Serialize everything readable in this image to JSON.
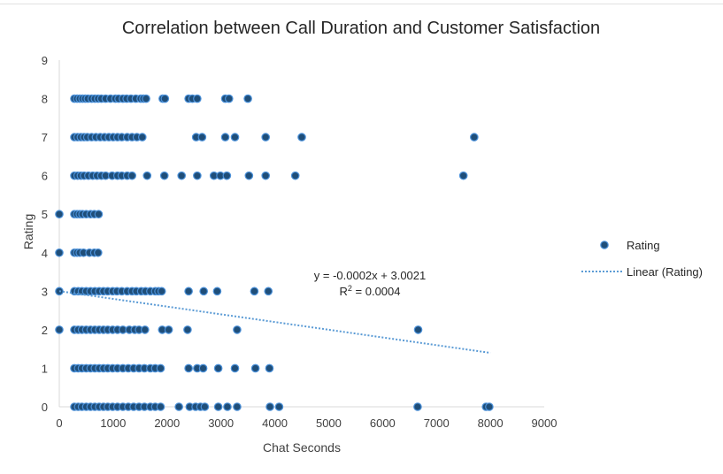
{
  "chart_data": {
    "type": "scatter",
    "title": "Correlation between Call Duration and Customer Satisfaction",
    "xlabel": "Chat Seconds",
    "ylabel": "Rating",
    "xlim": [
      0,
      9000
    ],
    "ylim": [
      0,
      9
    ],
    "x_ticks": [
      "0",
      "1000",
      "2000",
      "3000",
      "4000",
      "5000",
      "6000",
      "7000",
      "8000",
      "9000"
    ],
    "y_ticks": [
      "0",
      "1",
      "2",
      "3",
      "4",
      "5",
      "6",
      "7",
      "8",
      "9"
    ],
    "grid": false,
    "legend_position": "right",
    "colors": {
      "points": "#1f4e79",
      "point_edge": "#4a90d9",
      "trendline": "#5b9bd5"
    },
    "series": [
      {
        "name": "Rating",
        "marker": "circle",
        "points": [
          [
            0,
            3
          ],
          [
            0,
            4
          ],
          [
            0,
            5
          ],
          [
            0,
            2
          ],
          [
            280,
            8
          ],
          [
            330,
            8
          ],
          [
            380,
            8
          ],
          [
            430,
            8
          ],
          [
            480,
            8
          ],
          [
            530,
            8
          ],
          [
            600,
            8
          ],
          [
            660,
            8
          ],
          [
            720,
            8
          ],
          [
            780,
            8
          ],
          [
            860,
            8
          ],
          [
            950,
            8
          ],
          [
            1040,
            8
          ],
          [
            1100,
            8
          ],
          [
            1180,
            8
          ],
          [
            1250,
            8
          ],
          [
            1330,
            8
          ],
          [
            1420,
            8
          ],
          [
            1510,
            8
          ],
          [
            1560,
            8
          ],
          [
            1610,
            8
          ],
          [
            1920,
            8
          ],
          [
            1960,
            8
          ],
          [
            2400,
            8
          ],
          [
            2470,
            8
          ],
          [
            2560,
            8
          ],
          [
            3080,
            8
          ],
          [
            3150,
            8
          ],
          [
            3500,
            8
          ],
          [
            280,
            7
          ],
          [
            340,
            7
          ],
          [
            400,
            7
          ],
          [
            460,
            7
          ],
          [
            520,
            7
          ],
          [
            600,
            7
          ],
          [
            680,
            7
          ],
          [
            760,
            7
          ],
          [
            840,
            7
          ],
          [
            920,
            7
          ],
          [
            1000,
            7
          ],
          [
            1080,
            7
          ],
          [
            1160,
            7
          ],
          [
            1260,
            7
          ],
          [
            1350,
            7
          ],
          [
            1440,
            7
          ],
          [
            1540,
            7
          ],
          [
            2540,
            7
          ],
          [
            2650,
            7
          ],
          [
            3080,
            7
          ],
          [
            3260,
            7
          ],
          [
            3830,
            7
          ],
          [
            4500,
            7
          ],
          [
            7700,
            7
          ],
          [
            280,
            6
          ],
          [
            340,
            6
          ],
          [
            400,
            6
          ],
          [
            460,
            6
          ],
          [
            540,
            6
          ],
          [
            620,
            6
          ],
          [
            700,
            6
          ],
          [
            780,
            6
          ],
          [
            860,
            6
          ],
          [
            980,
            6
          ],
          [
            1080,
            6
          ],
          [
            1160,
            6
          ],
          [
            1260,
            6
          ],
          [
            1350,
            6
          ],
          [
            1630,
            6
          ],
          [
            1950,
            6
          ],
          [
            2270,
            6
          ],
          [
            2560,
            6
          ],
          [
            2870,
            6
          ],
          [
            2990,
            6
          ],
          [
            3110,
            6
          ],
          [
            3520,
            6
          ],
          [
            3830,
            6
          ],
          [
            4380,
            6
          ],
          [
            7500,
            6
          ],
          [
            280,
            5
          ],
          [
            330,
            5
          ],
          [
            380,
            5
          ],
          [
            430,
            5
          ],
          [
            500,
            5
          ],
          [
            580,
            5
          ],
          [
            650,
            5
          ],
          [
            730,
            5
          ],
          [
            280,
            4
          ],
          [
            330,
            4
          ],
          [
            380,
            4
          ],
          [
            450,
            4
          ],
          [
            560,
            4
          ],
          [
            650,
            4
          ],
          [
            720,
            4
          ],
          [
            280,
            3
          ],
          [
            350,
            3
          ],
          [
            420,
            3
          ],
          [
            500,
            3
          ],
          [
            580,
            3
          ],
          [
            660,
            3
          ],
          [
            740,
            3
          ],
          [
            820,
            3
          ],
          [
            900,
            3
          ],
          [
            990,
            3
          ],
          [
            1070,
            3
          ],
          [
            1160,
            3
          ],
          [
            1260,
            3
          ],
          [
            1350,
            3
          ],
          [
            1430,
            3
          ],
          [
            1520,
            3
          ],
          [
            1600,
            3
          ],
          [
            1690,
            3
          ],
          [
            1780,
            3
          ],
          [
            1840,
            3
          ],
          [
            1900,
            3
          ],
          [
            2400,
            3
          ],
          [
            2680,
            3
          ],
          [
            2930,
            3
          ],
          [
            3620,
            3
          ],
          [
            3880,
            3
          ],
          [
            280,
            2
          ],
          [
            350,
            2
          ],
          [
            420,
            2
          ],
          [
            500,
            2
          ],
          [
            580,
            2
          ],
          [
            660,
            2
          ],
          [
            740,
            2
          ],
          [
            820,
            2
          ],
          [
            900,
            2
          ],
          [
            990,
            2
          ],
          [
            1080,
            2
          ],
          [
            1180,
            2
          ],
          [
            1300,
            2
          ],
          [
            1400,
            2
          ],
          [
            1480,
            2
          ],
          [
            1590,
            2
          ],
          [
            1910,
            2
          ],
          [
            2030,
            2
          ],
          [
            2380,
            2
          ],
          [
            3300,
            2
          ],
          [
            6660,
            2
          ],
          [
            280,
            1
          ],
          [
            350,
            1
          ],
          [
            420,
            1
          ],
          [
            500,
            1
          ],
          [
            580,
            1
          ],
          [
            660,
            1
          ],
          [
            740,
            1
          ],
          [
            820,
            1
          ],
          [
            900,
            1
          ],
          [
            990,
            1
          ],
          [
            1080,
            1
          ],
          [
            1180,
            1
          ],
          [
            1280,
            1
          ],
          [
            1380,
            1
          ],
          [
            1480,
            1
          ],
          [
            1580,
            1
          ],
          [
            1690,
            1
          ],
          [
            1780,
            1
          ],
          [
            1880,
            1
          ],
          [
            2400,
            1
          ],
          [
            2560,
            1
          ],
          [
            2670,
            1
          ],
          [
            2950,
            1
          ],
          [
            3260,
            1
          ],
          [
            3640,
            1
          ],
          [
            3900,
            1
          ],
          [
            280,
            0
          ],
          [
            350,
            0
          ],
          [
            420,
            0
          ],
          [
            500,
            0
          ],
          [
            580,
            0
          ],
          [
            660,
            0
          ],
          [
            740,
            0
          ],
          [
            820,
            0
          ],
          [
            900,
            0
          ],
          [
            990,
            0
          ],
          [
            1080,
            0
          ],
          [
            1180,
            0
          ],
          [
            1280,
            0
          ],
          [
            1380,
            0
          ],
          [
            1480,
            0
          ],
          [
            1580,
            0
          ],
          [
            1690,
            0
          ],
          [
            1780,
            0
          ],
          [
            1880,
            0
          ],
          [
            2220,
            0
          ],
          [
            2420,
            0
          ],
          [
            2530,
            0
          ],
          [
            2620,
            0
          ],
          [
            2700,
            0
          ],
          [
            2950,
            0
          ],
          [
            3120,
            0
          ],
          [
            3300,
            0
          ],
          [
            3910,
            0
          ],
          [
            4080,
            0
          ],
          [
            6650,
            0
          ],
          [
            7920,
            0
          ],
          [
            7980,
            0
          ]
        ]
      }
    ],
    "trendline": {
      "name": "Linear (Rating)",
      "style": "dotted",
      "from": [
        0,
        3.0021
      ],
      "to": [
        8000,
        1.4
      ],
      "equation": "y = -0.0002x + 3.0021",
      "r_squared_prefix": "R",
      "r_squared_sup": "2",
      "r_squared_rest": " = 0.0004"
    },
    "legend": [
      {
        "label": "Rating",
        "kind": "marker"
      },
      {
        "label": "Linear (Rating)",
        "kind": "dotted-line"
      }
    ]
  }
}
